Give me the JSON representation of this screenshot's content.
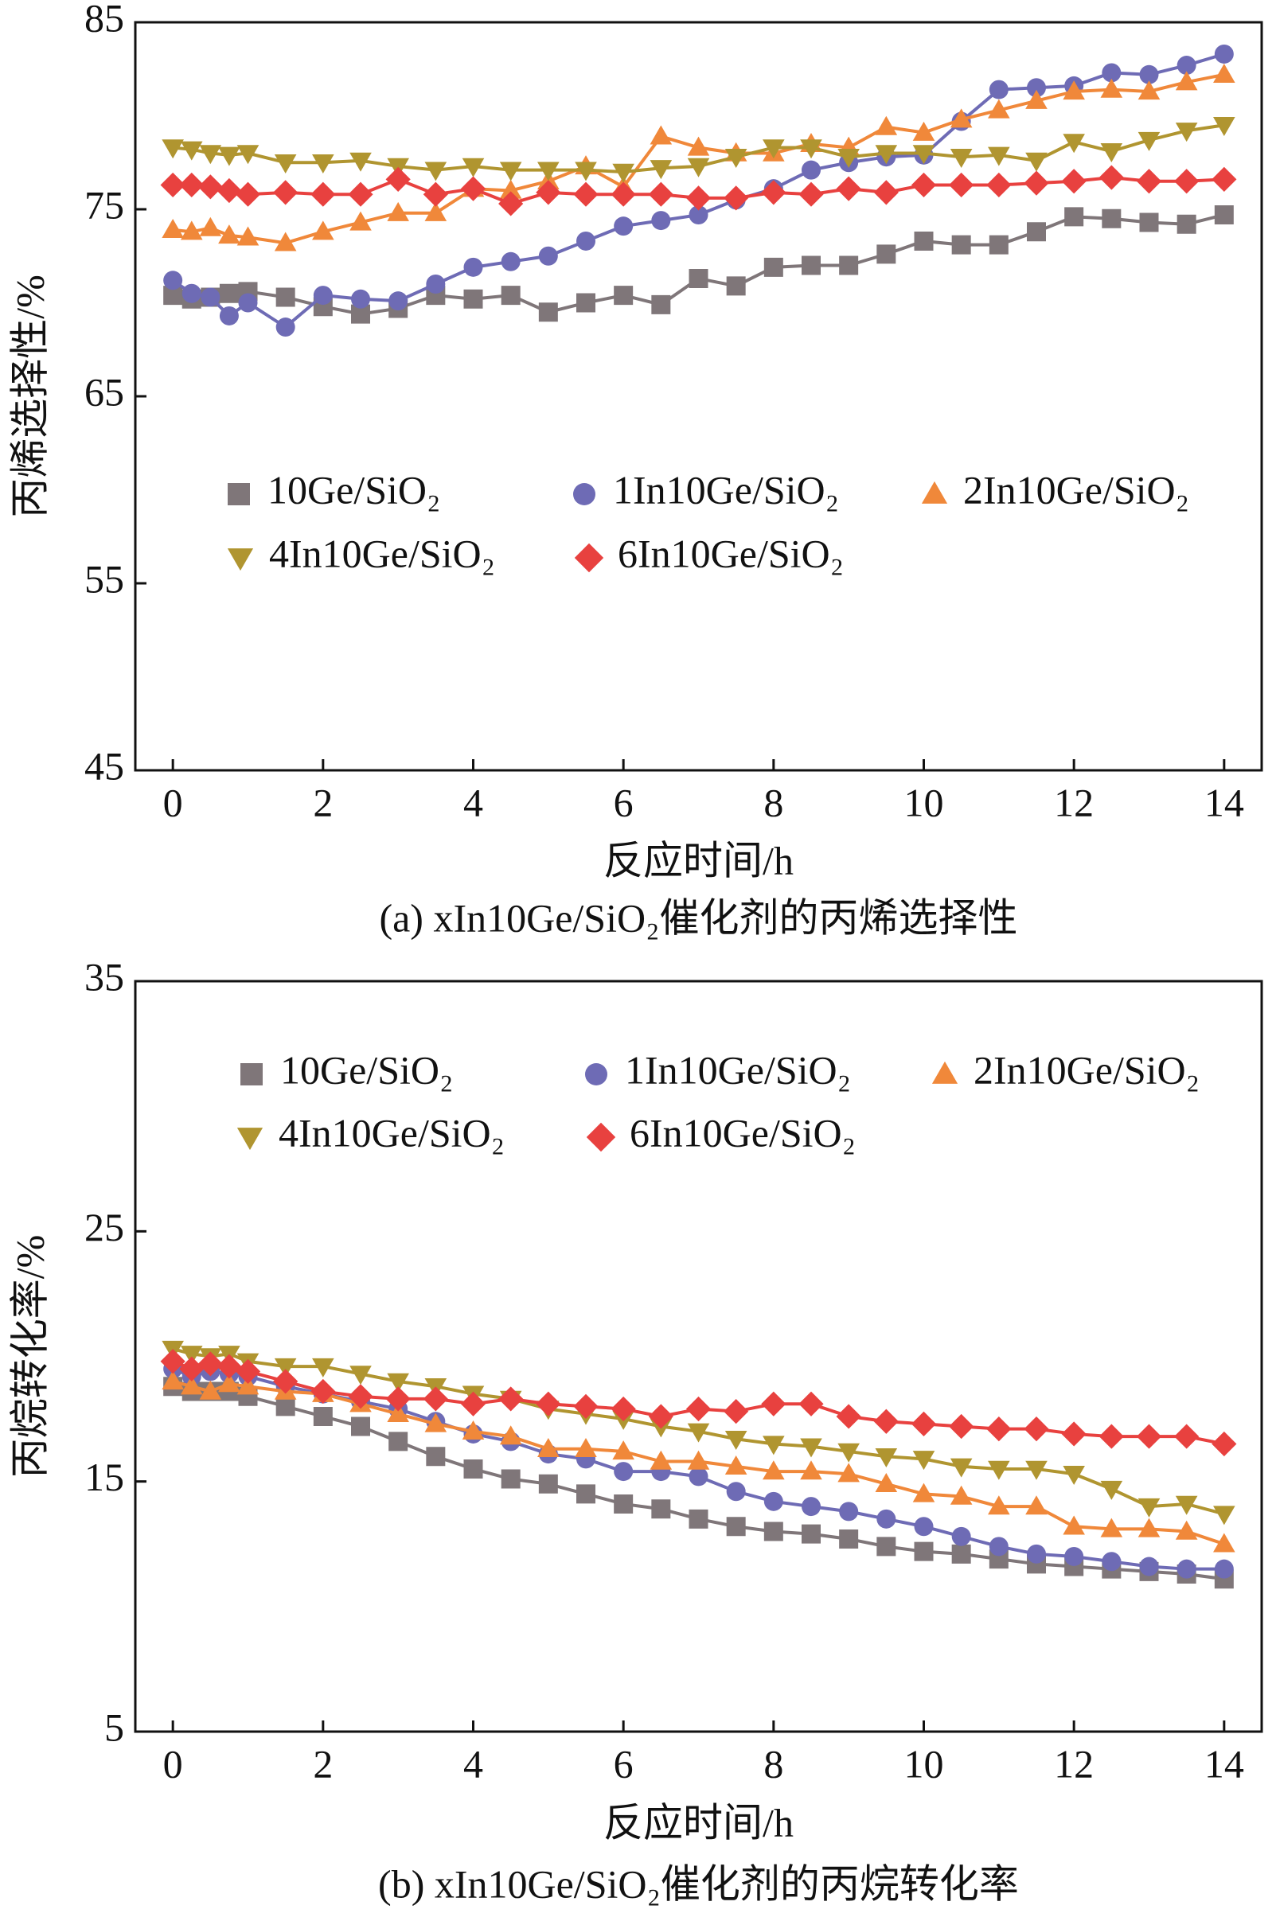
{
  "chart_data": [
    {
      "type": "line",
      "ylabel": "丙烯选择性/%",
      "xlabel": "反应时间/h",
      "caption": "(a) xIn10Ge/SiO₂催化剂的丙烯选择性",
      "xlim": [
        -0.5,
        14.5
      ],
      "xticks": [
        0,
        2,
        4,
        6,
        8,
        10,
        12,
        14
      ],
      "ylim": [
        45,
        85
      ],
      "yticks": [
        45,
        55,
        65,
        75,
        85
      ],
      "x": [
        0,
        0.25,
        0.5,
        0.75,
        1,
        1.5,
        2,
        2.5,
        3,
        3.5,
        4,
        4.5,
        5,
        5.5,
        6,
        6.5,
        7,
        7.5,
        8,
        8.5,
        9,
        9.5,
        10,
        10.5,
        11,
        11.5,
        12,
        12.5,
        13,
        13.5,
        14
      ],
      "series": [
        {
          "name": "10Ge/SiO₂",
          "color": "#7f7679",
          "marker": "square",
          "values": [
            70.4,
            70.2,
            70.3,
            70.5,
            70.6,
            70.3,
            69.8,
            69.4,
            69.7,
            70.4,
            70.2,
            70.4,
            69.5,
            70.0,
            70.4,
            69.9,
            71.3,
            70.9,
            71.9,
            72.0,
            72.0,
            72.6,
            73.3,
            73.1,
            73.1,
            73.8,
            74.6,
            74.5,
            74.3,
            74.2,
            74.7
          ]
        },
        {
          "name": "1In10Ge/SiO₂",
          "color": "#6e6bb5",
          "marker": "circle",
          "values": [
            71.2,
            70.5,
            70.3,
            69.3,
            70.0,
            68.7,
            70.4,
            70.2,
            70.1,
            71.0,
            71.9,
            72.2,
            72.5,
            73.3,
            74.1,
            74.4,
            74.7,
            75.5,
            76.1,
            77.1,
            77.5,
            77.8,
            77.9,
            79.7,
            81.4,
            81.5,
            81.6,
            82.3,
            82.2,
            82.7,
            83.3
          ]
        },
        {
          "name": "2In10Ge/SiO₂",
          "color": "#f0883a",
          "marker": "triangle-up",
          "values": [
            73.9,
            73.8,
            74.0,
            73.6,
            73.5,
            73.2,
            73.8,
            74.3,
            74.8,
            74.8,
            76.1,
            76.0,
            76.5,
            77.3,
            76.2,
            78.9,
            78.3,
            78.0,
            78.0,
            78.5,
            78.3,
            79.4,
            79.1,
            79.8,
            80.3,
            80.8,
            81.3,
            81.4,
            81.3,
            81.8,
            82.2
          ]
        },
        {
          "name": "4In10Ge/SiO₂",
          "color": "#b09530",
          "marker": "triangle-down",
          "values": [
            78.3,
            78.2,
            78.0,
            77.9,
            78.0,
            77.5,
            77.5,
            77.6,
            77.3,
            77.1,
            77.3,
            77.1,
            77.1,
            77.1,
            77.0,
            77.2,
            77.3,
            77.8,
            78.3,
            78.3,
            77.8,
            78.0,
            78.0,
            77.8,
            77.9,
            77.6,
            78.6,
            78.1,
            78.7,
            79.2,
            79.5
          ]
        },
        {
          "name": "6In10Ge/SiO₂",
          "color": "#e8413f",
          "marker": "diamond",
          "values": [
            76.3,
            76.3,
            76.2,
            76.0,
            75.8,
            75.9,
            75.8,
            75.8,
            76.6,
            75.8,
            76.1,
            75.3,
            75.9,
            75.8,
            75.8,
            75.8,
            75.6,
            75.6,
            75.9,
            75.8,
            76.1,
            75.9,
            76.3,
            76.3,
            76.3,
            76.4,
            76.5,
            76.7,
            76.5,
            76.5,
            76.6
          ]
        }
      ]
    },
    {
      "type": "line",
      "ylabel": "丙烷转化率/%",
      "xlabel": "反应时间/h",
      "caption": "(b) xIn10Ge/SiO₂催化剂的丙烷转化率",
      "xlim": [
        -0.5,
        14.5
      ],
      "xticks": [
        0,
        2,
        4,
        6,
        8,
        10,
        12,
        14
      ],
      "ylim": [
        5,
        35
      ],
      "yticks": [
        5,
        15,
        25,
        35
      ],
      "x": [
        0,
        0.25,
        0.5,
        0.75,
        1,
        1.5,
        2,
        2.5,
        3,
        3.5,
        4,
        4.5,
        5,
        5.5,
        6,
        6.5,
        7,
        7.5,
        8,
        8.5,
        9,
        9.5,
        10,
        10.5,
        11,
        11.5,
        12,
        12.5,
        13,
        13.5,
        14
      ],
      "series": [
        {
          "name": "10Ge/SiO₂",
          "color": "#7f7679",
          "marker": "square",
          "values": [
            18.8,
            18.6,
            18.6,
            18.6,
            18.4,
            18.0,
            17.6,
            17.2,
            16.6,
            16.0,
            15.5,
            15.1,
            14.9,
            14.5,
            14.1,
            13.9,
            13.5,
            13.2,
            13.0,
            12.9,
            12.7,
            12.4,
            12.2,
            12.1,
            11.9,
            11.7,
            11.6,
            11.5,
            11.4,
            11.3,
            11.1
          ]
        },
        {
          "name": "1In10Ge/SiO₂",
          "color": "#6e6bb5",
          "marker": "circle",
          "values": [
            19.5,
            19.2,
            19.4,
            19.3,
            19.2,
            18.8,
            18.5,
            18.2,
            17.9,
            17.4,
            16.9,
            16.6,
            16.1,
            15.9,
            15.4,
            15.4,
            15.2,
            14.6,
            14.2,
            14.0,
            13.8,
            13.5,
            13.2,
            12.8,
            12.4,
            12.1,
            12.0,
            11.8,
            11.6,
            11.5,
            11.5
          ]
        },
        {
          "name": "2In10Ge/SiO₂",
          "color": "#f0883a",
          "marker": "triangle-up",
          "values": [
            19.0,
            18.8,
            18.6,
            18.9,
            18.8,
            18.6,
            18.5,
            18.1,
            17.7,
            17.3,
            17.0,
            16.8,
            16.3,
            16.3,
            16.2,
            15.8,
            15.8,
            15.6,
            15.4,
            15.4,
            15.3,
            14.9,
            14.5,
            14.4,
            14.0,
            14.0,
            13.2,
            13.1,
            13.1,
            13.0,
            12.5
          ]
        },
        {
          "name": "4In10Ge/SiO₂",
          "color": "#b09530",
          "marker": "triangle-down",
          "values": [
            20.3,
            20.1,
            20.0,
            20.1,
            19.8,
            19.6,
            19.6,
            19.3,
            19.0,
            18.8,
            18.5,
            18.3,
            17.9,
            17.7,
            17.5,
            17.2,
            17.0,
            16.7,
            16.5,
            16.4,
            16.2,
            16.0,
            15.9,
            15.6,
            15.5,
            15.5,
            15.3,
            14.7,
            14.0,
            14.1,
            13.7
          ]
        },
        {
          "name": "6In10Ge/SiO₂",
          "color": "#e8413f",
          "marker": "diamond",
          "values": [
            19.8,
            19.5,
            19.7,
            19.6,
            19.4,
            19.0,
            18.6,
            18.4,
            18.3,
            18.3,
            18.1,
            18.3,
            18.1,
            18.0,
            17.9,
            17.6,
            17.9,
            17.8,
            18.1,
            18.1,
            17.6,
            17.4,
            17.3,
            17.2,
            17.1,
            17.1,
            16.9,
            16.8,
            16.8,
            16.8,
            16.5
          ]
        }
      ]
    }
  ]
}
